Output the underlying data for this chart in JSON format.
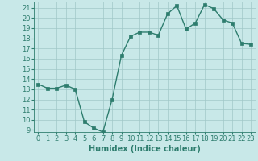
{
  "x": [
    0,
    1,
    2,
    3,
    4,
    5,
    6,
    7,
    8,
    9,
    10,
    11,
    12,
    13,
    14,
    15,
    16,
    17,
    18,
    19,
    20,
    21,
    22,
    23
  ],
  "y": [
    13.5,
    13.1,
    13.1,
    13.4,
    13.0,
    9.8,
    9.2,
    8.8,
    12.0,
    16.3,
    18.2,
    18.6,
    18.6,
    18.3,
    20.4,
    21.2,
    18.9,
    19.5,
    21.3,
    20.9,
    19.8,
    19.5,
    17.5,
    17.4
  ],
  "line_color": "#2e7d6e",
  "marker_color": "#2e7d6e",
  "bg_color": "#c8e8e8",
  "grid_color": "#a0c8c8",
  "xlabel": "Humidex (Indice chaleur)",
  "xlim": [
    -0.5,
    23.5
  ],
  "ylim": [
    8.8,
    21.6
  ],
  "yticks": [
    9,
    10,
    11,
    12,
    13,
    14,
    15,
    16,
    17,
    18,
    19,
    20,
    21
  ],
  "xticks": [
    0,
    1,
    2,
    3,
    4,
    5,
    6,
    7,
    8,
    9,
    10,
    11,
    12,
    13,
    14,
    15,
    16,
    17,
    18,
    19,
    20,
    21,
    22,
    23
  ],
  "xlabel_fontsize": 7,
  "tick_fontsize": 6,
  "line_width": 1.0,
  "marker_size": 2.5
}
